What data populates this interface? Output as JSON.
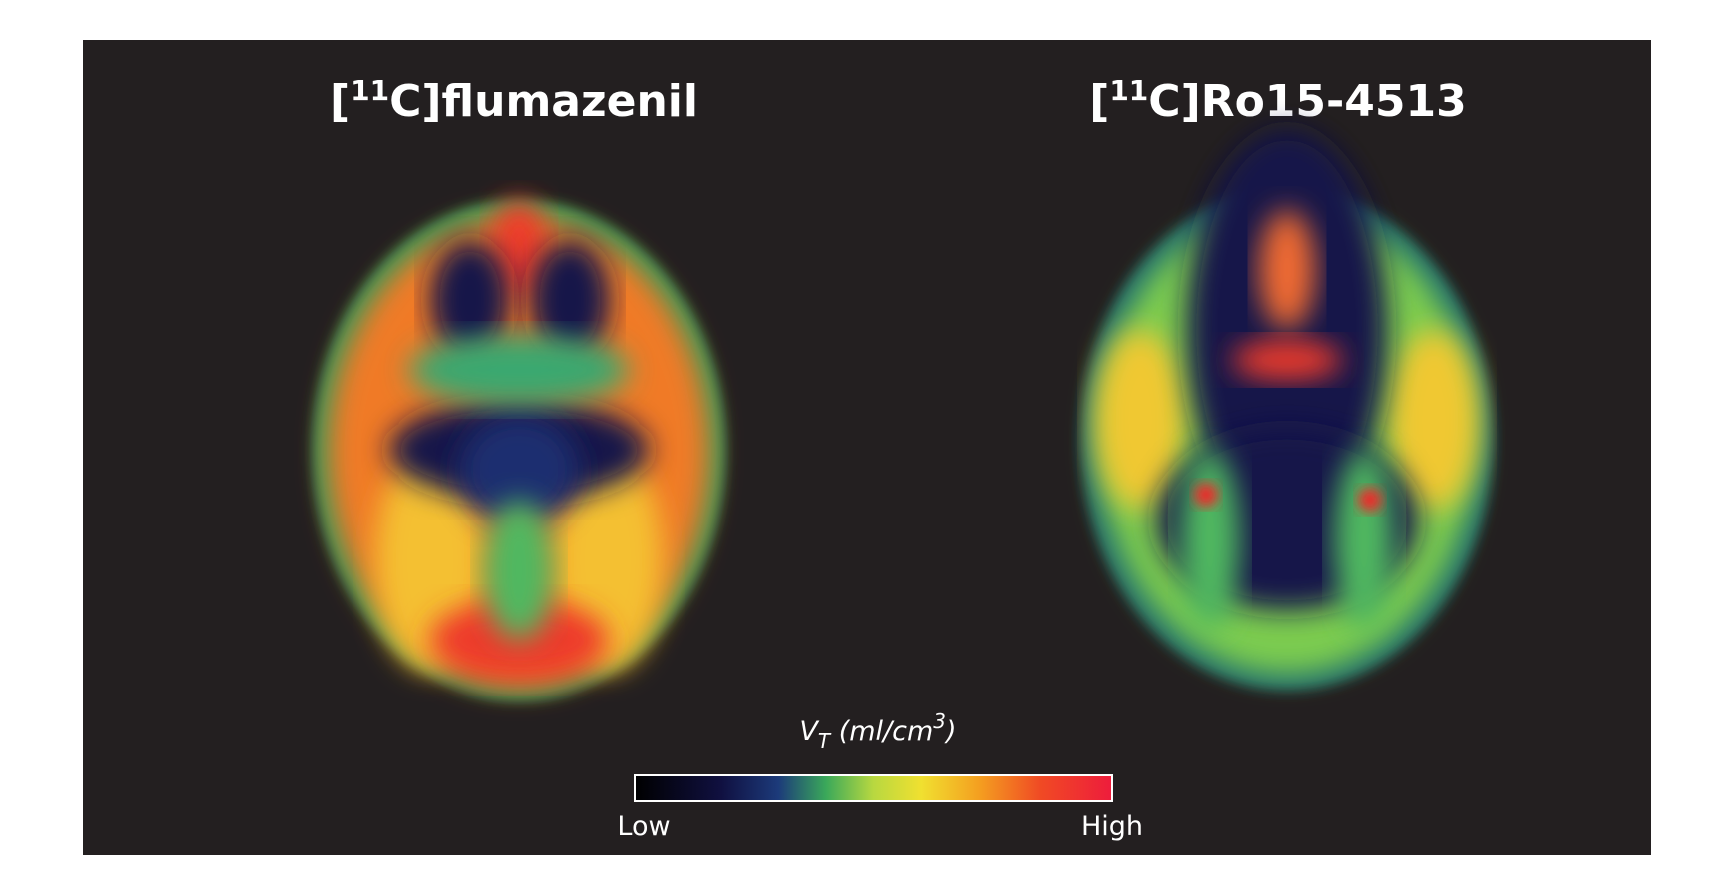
{
  "panels": [
    {
      "open": "[",
      "mass": "11",
      "rest": "C]flumazenil"
    },
    {
      "open": "[",
      "mass": "11",
      "rest": "C]Ro15-4513"
    }
  ],
  "colorbar": {
    "symbol": "V",
    "subscript": "T",
    "unit_open": " (ml/cm",
    "superscript": "3",
    "unit_close": ")",
    "low": "Low",
    "high": "High"
  }
}
